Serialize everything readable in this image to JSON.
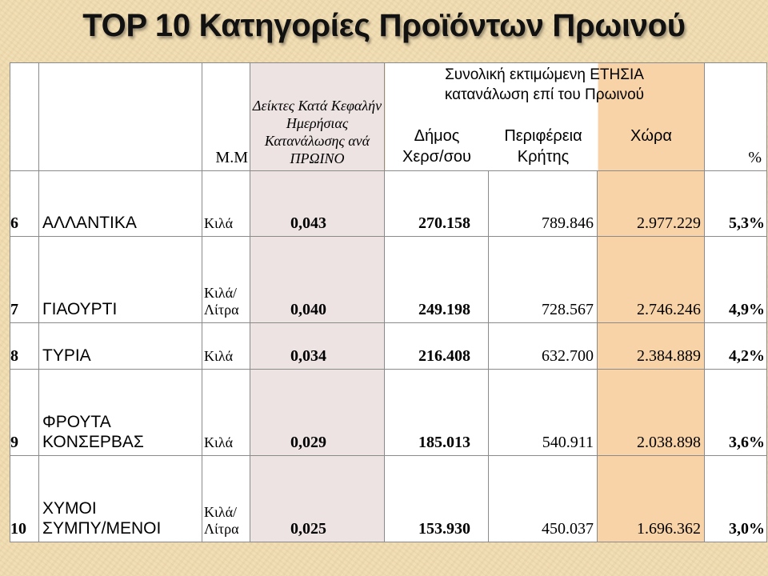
{
  "title": "TOP 10 Κατηγορίες Προϊόντων Πρωινού",
  "header": {
    "unit_col": "Μ.Μ",
    "indicator_col": "Δείκτες Κατά Κεφαλήν Ημερήσιας Κατανάλωσης ανά ΠΡΩΙΝΟ",
    "group_title_line1": "Συνολική εκτιμώμενη ΕΤΗΣΙΑ",
    "group_title_line2": "κατανάλωση επί του Πρωινού",
    "municipality_line1": "Δήμος",
    "municipality_line2": "Χερσ/σου",
    "region_line1": "Περιφέρεια",
    "region_line2": "Κρήτης",
    "country": "Χώρα",
    "percent": "%"
  },
  "rows": [
    {
      "idx": "6",
      "name1": "ΑΛΛΑΝΤΙΚΑ",
      "name2": "",
      "unit1": "Κιλά",
      "unit2": "",
      "indicator": "0,043",
      "municipality": "270.158",
      "region": "789.846",
      "country": "2.977.229",
      "percent": "5,3%"
    },
    {
      "idx": "7",
      "name1": "ΓΙΑΟΥΡΤΙ",
      "name2": "",
      "unit1": "Κιλά/",
      "unit2": "Λίτρα",
      "indicator": "0,040",
      "municipality": "249.198",
      "region": "728.567",
      "country": "2.746.246",
      "percent": "4,9%"
    },
    {
      "idx": "8",
      "name1": "ΤΥΡΙΑ",
      "name2": "",
      "unit1": "Κιλά",
      "unit2": "",
      "indicator": "0,034",
      "municipality": "216.408",
      "region": "632.700",
      "country": "2.384.889",
      "percent": "4,2%"
    },
    {
      "idx": "9",
      "name1": "ΦΡΟΥΤΑ",
      "name2": "ΚΟΝΣΕΡΒΑΣ",
      "unit1": "Κιλά",
      "unit2": "",
      "indicator": "0,029",
      "municipality": "185.013",
      "region": "540.911",
      "country": "2.038.898",
      "percent": "3,6%"
    },
    {
      "idx": "10",
      "name1": "ΧΥΜΟΙ",
      "name2": "ΣΥΜΠΥ/ΜΕΝΟΙ",
      "unit1": "Κιλά/",
      "unit2": "Λίτρα",
      "indicator": "0,025",
      "municipality": "153.930",
      "region": "450.037",
      "country": "1.696.362",
      "percent": "3,0%"
    }
  ]
}
